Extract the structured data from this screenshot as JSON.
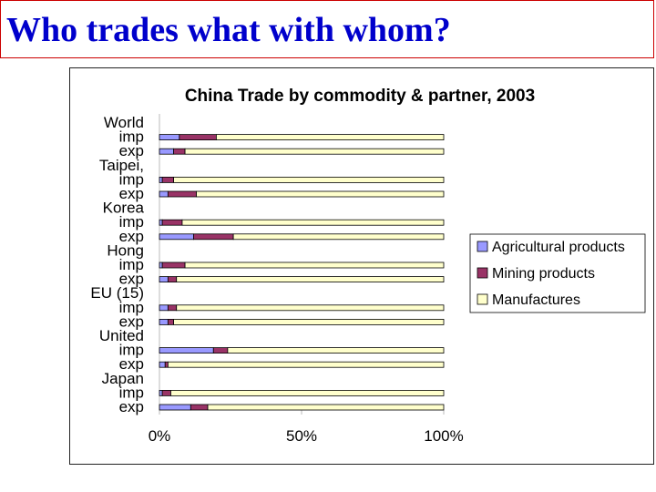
{
  "slide": {
    "title": "Who trades what with whom?"
  },
  "chart_data": {
    "type": "bar",
    "orientation": "horizontal",
    "stacked": "percent",
    "title": "China Trade by commodity & partner, 2003",
    "row_labels": [
      "World",
      "imp",
      "exp",
      "Taipei,",
      "imp",
      "exp",
      "Korea",
      "imp",
      "exp",
      "Hong",
      "imp",
      "exp",
      "EU (15)",
      "imp",
      "exp",
      "United",
      "imp",
      "exp",
      "Japan",
      "imp",
      "exp"
    ],
    "categories": [
      "World imp",
      "World exp",
      "Taipei imp",
      "Taipei exp",
      "Korea imp",
      "Korea exp",
      "Hong imp",
      "Hong exp",
      "EU (15) imp",
      "EU (15) exp",
      "United imp",
      "United exp",
      "Japan imp",
      "Japan exp"
    ],
    "category_rows": [
      1,
      2,
      4,
      5,
      7,
      8,
      10,
      11,
      13,
      14,
      16,
      17,
      19,
      20
    ],
    "series": [
      {
        "name": "Agricultural products",
        "color": "#9999ff",
        "values": [
          7,
          5,
          1,
          3,
          1,
          12,
          1,
          3,
          3,
          3,
          19,
          2,
          1,
          11
        ]
      },
      {
        "name": "Mining products",
        "color": "#993366",
        "values": [
          13,
          4,
          4,
          10,
          7,
          14,
          8,
          3,
          3,
          2,
          5,
          1,
          3,
          6
        ]
      },
      {
        "name": "Manufactures",
        "color": "#ffffcc",
        "values": [
          80,
          91,
          95,
          87,
          92,
          74,
          91,
          94,
          94,
          95,
          76,
          97,
          96,
          83
        ]
      }
    ],
    "xlim": [
      0,
      100
    ],
    "xticks": [
      "0%",
      "50%",
      "100%"
    ],
    "grid": false,
    "legend_position": "right"
  }
}
